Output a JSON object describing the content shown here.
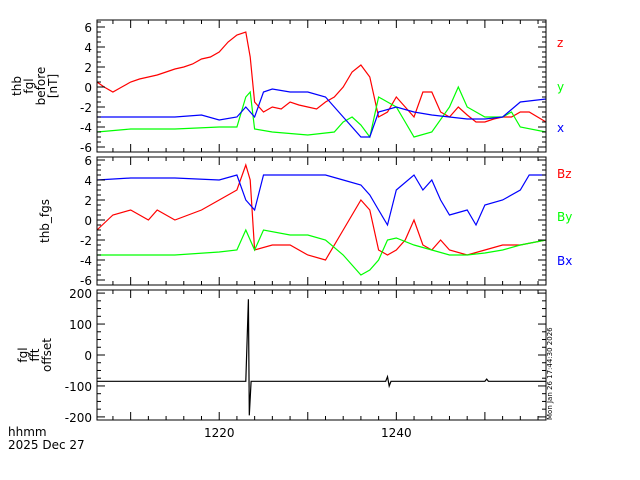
{
  "chart_data": {
    "type": "line",
    "xlabel": "hhmm",
    "date_label": "2025 Dec 27",
    "timestamp": "Mon Jan 26 17:44:30 2026",
    "xlim": [
      1206.2,
      1256.9
    ],
    "xticks": [
      1220,
      1240
    ],
    "panels": [
      {
        "ylabel": [
          "thb",
          "fgl",
          "before",
          "[nT]"
        ],
        "ylim": [
          -6.5,
          6.7
        ],
        "yticks": [
          6,
          4,
          2,
          0,
          -2,
          -4,
          -6
        ],
        "series": [
          {
            "name": "z",
            "color": "#ff0000",
            "points": [
              [
                1206.2,
                0.5
              ],
              [
                1207,
                0
              ],
              [
                1208,
                -0.5
              ],
              [
                1209,
                0
              ],
              [
                1210,
                0.5
              ],
              [
                1211,
                0.8
              ],
              [
                1212,
                1
              ],
              [
                1213,
                1.2
              ],
              [
                1214,
                1.5
              ],
              [
                1215,
                1.8
              ],
              [
                1216,
                2
              ],
              [
                1217,
                2.3
              ],
              [
                1218,
                2.8
              ],
              [
                1219,
                3
              ],
              [
                1220,
                3.5
              ],
              [
                1221,
                4.5
              ],
              [
                1222,
                5.2
              ],
              [
                1223,
                5.5
              ],
              [
                1223.5,
                3
              ],
              [
                1224,
                -1.5
              ],
              [
                1225,
                -2.5
              ],
              [
                1226,
                -2
              ],
              [
                1227,
                -2.2
              ],
              [
                1228,
                -1.5
              ],
              [
                1229,
                -1.8
              ],
              [
                1230,
                -2
              ],
              [
                1231,
                -2.2
              ],
              [
                1232,
                -1.5
              ],
              [
                1233,
                -1
              ],
              [
                1234,
                0
              ],
              [
                1235,
                1.5
              ],
              [
                1236,
                2.2
              ],
              [
                1237,
                1
              ],
              [
                1238,
                -3
              ],
              [
                1239,
                -2.5
              ],
              [
                1240,
                -1
              ],
              [
                1241,
                -2
              ],
              [
                1242,
                -3
              ],
              [
                1243,
                -0.5
              ],
              [
                1244,
                -0.5
              ],
              [
                1245,
                -2.5
              ],
              [
                1246,
                -3
              ],
              [
                1247,
                -2
              ],
              [
                1248,
                -2.8
              ],
              [
                1249,
                -3.5
              ],
              [
                1250,
                -3.5
              ],
              [
                1251,
                -3.2
              ],
              [
                1252,
                -3
              ],
              [
                1253,
                -3
              ],
              [
                1254,
                -2.5
              ],
              [
                1255,
                -2.5
              ],
              [
                1256.9,
                -3.5
              ]
            ]
          },
          {
            "name": "y",
            "color": "#00ff00",
            "points": [
              [
                1206.2,
                -4.5
              ],
              [
                1210,
                -4.2
              ],
              [
                1215,
                -4.2
              ],
              [
                1220,
                -4
              ],
              [
                1222,
                -4
              ],
              [
                1223,
                -1
              ],
              [
                1223.5,
                -0.5
              ],
              [
                1224,
                -4.2
              ],
              [
                1226,
                -4.5
              ],
              [
                1230,
                -4.8
              ],
              [
                1233,
                -4.5
              ],
              [
                1234,
                -3.5
              ],
              [
                1235,
                -3
              ],
              [
                1236,
                -3.8
              ],
              [
                1237,
                -5
              ],
              [
                1238,
                -1
              ],
              [
                1239,
                -1.5
              ],
              [
                1240,
                -2
              ],
              [
                1241,
                -3.5
              ],
              [
                1242,
                -5
              ],
              [
                1244,
                -4.5
              ],
              [
                1246,
                -2
              ],
              [
                1247,
                0
              ],
              [
                1248,
                -2
              ],
              [
                1250,
                -3
              ],
              [
                1252,
                -3
              ],
              [
                1253,
                -2.5
              ],
              [
                1254,
                -4
              ],
              [
                1256.9,
                -4.5
              ]
            ]
          },
          {
            "name": "x",
            "color": "#0000ff",
            "points": [
              [
                1206.2,
                -3
              ],
              [
                1210,
                -3
              ],
              [
                1215,
                -3
              ],
              [
                1218,
                -2.8
              ],
              [
                1220,
                -3.3
              ],
              [
                1222,
                -3
              ],
              [
                1223,
                -2
              ],
              [
                1224,
                -3
              ],
              [
                1225,
                -0.5
              ],
              [
                1226,
                -0.2
              ],
              [
                1228,
                -0.5
              ],
              [
                1230,
                -0.5
              ],
              [
                1232,
                -1
              ],
              [
                1234,
                -3
              ],
              [
                1236,
                -5
              ],
              [
                1237,
                -5
              ],
              [
                1238,
                -2.5
              ],
              [
                1240,
                -2
              ],
              [
                1242,
                -2.5
              ],
              [
                1244,
                -2.8
              ],
              [
                1246,
                -3
              ],
              [
                1248,
                -3.2
              ],
              [
                1250,
                -3.2
              ],
              [
                1252,
                -3
              ],
              [
                1254,
                -1.5
              ],
              [
                1256.9,
                -1.2
              ]
            ]
          }
        ]
      },
      {
        "ylabel": [
          "thb_fgs"
        ],
        "ylim": [
          -6.5,
          6.3
        ],
        "yticks": [
          6,
          4,
          2,
          0,
          -2,
          -4,
          -6
        ],
        "series": [
          {
            "name": "Bz",
            "color": "#ff0000",
            "points": [
              [
                1206.2,
                -1
              ],
              [
                1208,
                0.5
              ],
              [
                1210,
                1
              ],
              [
                1212,
                0
              ],
              [
                1213,
                1
              ],
              [
                1215,
                0
              ],
              [
                1218,
                1
              ],
              [
                1220,
                2
              ],
              [
                1222,
                3
              ],
              [
                1223,
                5.5
              ],
              [
                1223.5,
                4
              ],
              [
                1224,
                -3
              ],
              [
                1226,
                -2.5
              ],
              [
                1228,
                -2.5
              ],
              [
                1230,
                -3.5
              ],
              [
                1232,
                -4
              ],
              [
                1234,
                -1
              ],
              [
                1236,
                2
              ],
              [
                1237,
                1
              ],
              [
                1238,
                -3
              ],
              [
                1239,
                -3.5
              ],
              [
                1240,
                -3
              ],
              [
                1241,
                -2
              ],
              [
                1242,
                0
              ],
              [
                1243,
                -2.5
              ],
              [
                1244,
                -3
              ],
              [
                1245,
                -2
              ],
              [
                1246,
                -3
              ],
              [
                1248,
                -3.5
              ],
              [
                1250,
                -3
              ],
              [
                1252,
                -2.5
              ],
              [
                1254,
                -2.5
              ],
              [
                1256.9,
                -2
              ]
            ]
          },
          {
            "name": "By",
            "color": "#00ff00",
            "points": [
              [
                1206.2,
                -3.5
              ],
              [
                1210,
                -3.5
              ],
              [
                1215,
                -3.5
              ],
              [
                1220,
                -3.2
              ],
              [
                1222,
                -3
              ],
              [
                1223,
                -1
              ],
              [
                1224,
                -3
              ],
              [
                1225,
                -1
              ],
              [
                1228,
                -1.5
              ],
              [
                1230,
                -1.5
              ],
              [
                1232,
                -2
              ],
              [
                1234,
                -3.5
              ],
              [
                1236,
                -5.5
              ],
              [
                1237,
                -5
              ],
              [
                1238,
                -4
              ],
              [
                1239,
                -2
              ],
              [
                1240,
                -1.8
              ],
              [
                1242,
                -2.5
              ],
              [
                1244,
                -3
              ],
              [
                1246,
                -3.5
              ],
              [
                1248,
                -3.5
              ],
              [
                1250,
                -3.3
              ],
              [
                1252,
                -3
              ],
              [
                1254,
                -2.5
              ],
              [
                1256.9,
                -2
              ]
            ]
          },
          {
            "name": "Bx",
            "color": "#0000ff",
            "points": [
              [
                1206.2,
                4
              ],
              [
                1210,
                4.2
              ],
              [
                1215,
                4.2
              ],
              [
                1220,
                4
              ],
              [
                1222,
                4.5
              ],
              [
                1223,
                2
              ],
              [
                1224,
                1
              ],
              [
                1225,
                4.5
              ],
              [
                1228,
                4.5
              ],
              [
                1232,
                4.5
              ],
              [
                1234,
                4
              ],
              [
                1236,
                3.5
              ],
              [
                1237,
                2.5
              ],
              [
                1238,
                1
              ],
              [
                1239,
                -0.5
              ],
              [
                1240,
                3
              ],
              [
                1242,
                4.5
              ],
              [
                1243,
                3
              ],
              [
                1244,
                4
              ],
              [
                1245,
                2
              ],
              [
                1246,
                0.5
              ],
              [
                1248,
                1
              ],
              [
                1249,
                -0.5
              ],
              [
                1250,
                1.5
              ],
              [
                1252,
                2
              ],
              [
                1254,
                3
              ],
              [
                1255,
                4.5
              ],
              [
                1256.9,
                4.5
              ]
            ]
          }
        ]
      },
      {
        "ylabel": [
          "fgl",
          "fft",
          "offset"
        ],
        "ylim": [
          -210,
          210
        ],
        "yticks": [
          200,
          100,
          0,
          -100,
          -200
        ],
        "series": [
          {
            "name": "offset",
            "color": "#000000",
            "points": [
              [
                1206.2,
                -85
              ],
              [
                1215,
                -85
              ],
              [
                1223,
                -85
              ],
              [
                1223.3,
                180
              ],
              [
                1223.4,
                -195
              ],
              [
                1223.6,
                -85
              ],
              [
                1238.8,
                -85
              ],
              [
                1239,
                -70
              ],
              [
                1239.2,
                -100
              ],
              [
                1239.4,
                -85
              ],
              [
                1250,
                -85
              ],
              [
                1250.2,
                -78
              ],
              [
                1250.4,
                -85
              ],
              [
                1256.9,
                -85
              ]
            ]
          }
        ]
      }
    ]
  }
}
